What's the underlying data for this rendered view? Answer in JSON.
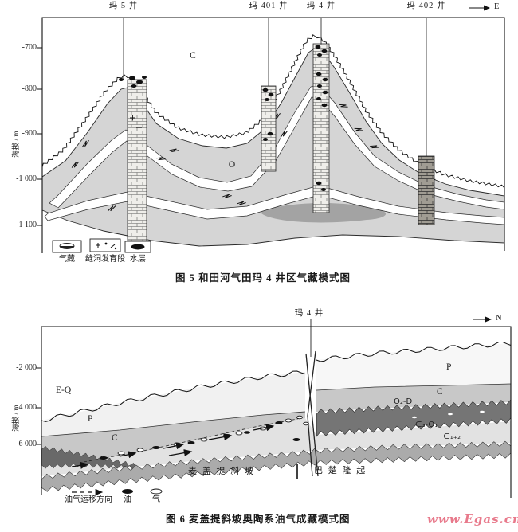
{
  "page": {
    "watermark": "www.Egas.cn"
  },
  "colors": {
    "ink": "#1a1a1a",
    "gray_body": "#d5d5d5",
    "mid_gray": "#c8c8c8",
    "dark_band": "#757575",
    "bottom_band": "#ababab",
    "watermark": "#e8798b"
  },
  "figure5": {
    "caption": "图 5  和田河气田玛 4 井区气藏模式图",
    "y_axis": {
      "label": "海拔 / m",
      "ticks": [
        "-700",
        "-800",
        "-900",
        "-1 000",
        "-1 100"
      ]
    },
    "direction_label": "E",
    "wells": [
      {
        "name": "玛 5 井"
      },
      {
        "name": "玛 401 井"
      },
      {
        "name": "玛 4 井"
      },
      {
        "name": "玛 402 井"
      }
    ],
    "strata_labels": {
      "carboniferous": "C",
      "ordovician": "O"
    },
    "legend": [
      {
        "label": "气藏",
        "symbol": "gas-reservoir-lens"
      },
      {
        "label": "缝洞发育段",
        "symbol": "fracture-cave-interval"
      },
      {
        "label": "水层",
        "symbol": "water-layer-lens"
      }
    ]
  },
  "figure6": {
    "caption": "图 6  麦盖提斜坡奥陶系油气成藏模式图",
    "y_axis": {
      "label": "海拔 / m",
      "ticks": [
        "-2 000",
        "-4 000",
        "-6 000"
      ]
    },
    "direction_label": "N",
    "well": "玛 4 井",
    "strata_labels": {
      "eq": "E-Q",
      "p_left": "P",
      "p_right": "P",
      "c_left": "C",
      "c_right": "C",
      "o2d": "O₂-D",
      "e3o1": "∈₃-O₁",
      "e12": "∈₁₊₂"
    },
    "tectonic_units": {
      "left": "麦 盖 提 斜 坡",
      "right": "巴 楚 隆 起"
    },
    "legend": [
      {
        "label": "油气运移方向",
        "symbol": "migration-arrow"
      },
      {
        "label": "油",
        "symbol": "oil-blob"
      },
      {
        "label": "气",
        "symbol": "gas-blob"
      }
    ]
  }
}
